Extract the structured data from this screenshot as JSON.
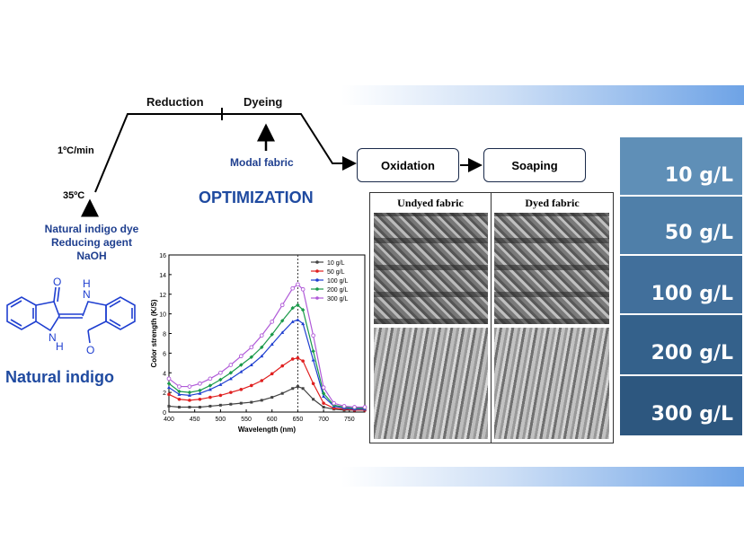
{
  "flow": {
    "reduction": "Reduction",
    "dyeing": "Dyeing",
    "rate": "1ºC/min",
    "start_temp": "35ºC",
    "modal_fabric": "Modal fabric",
    "oxidation": "Oxidation",
    "soaping": "Soaping",
    "optimization": "OPTIMIZATION"
  },
  "inputs": {
    "line1": "Natural indigo dye",
    "line2": "Reducing agent",
    "line3": "NaOH"
  },
  "molecule": {
    "name": "Natural indigo",
    "atom_o": "O",
    "atom_nh": "N",
    "atom_h": "H"
  },
  "sem": {
    "undyed": "Undyed fabric",
    "dyed": "Dyed fabric"
  },
  "swatches": [
    {
      "label": "10 g/L",
      "color": "#5f8fb7"
    },
    {
      "label": "50 g/L",
      "color": "#4f7fa9"
    },
    {
      "label": "100 g/L",
      "color": "#416f9b"
    },
    {
      "label": "200 g/L",
      "color": "#34618b"
    },
    {
      "label": "300 g/L",
      "color": "#2d577f"
    }
  ],
  "chart_data": {
    "type": "line",
    "xlabel": "Wavelength (nm)",
    "ylabel": "Color strength (K/S)",
    "xlim": [
      400,
      780
    ],
    "ylim": [
      0,
      16
    ],
    "xticks": [
      400,
      450,
      500,
      550,
      600,
      650,
      700,
      750
    ],
    "yticks": [
      0,
      2,
      4,
      6,
      8,
      10,
      12,
      14,
      16
    ],
    "peak_line_x": 650,
    "legend_position": "top-right",
    "x": [
      400,
      420,
      440,
      460,
      480,
      500,
      520,
      540,
      560,
      580,
      600,
      620,
      640,
      650,
      660,
      680,
      700,
      720,
      740,
      760,
      780
    ],
    "series": [
      {
        "name": "10 g/L",
        "color": "#444444",
        "marker": "square",
        "values": [
          0.6,
          0.5,
          0.5,
          0.5,
          0.6,
          0.7,
          0.8,
          0.9,
          1.0,
          1.2,
          1.5,
          1.9,
          2.4,
          2.6,
          2.4,
          1.3,
          0.5,
          0.3,
          0.2,
          0.2,
          0.2
        ]
      },
      {
        "name": "50 g/L",
        "color": "#e02020",
        "marker": "circle",
        "values": [
          1.8,
          1.3,
          1.2,
          1.3,
          1.5,
          1.7,
          2.0,
          2.3,
          2.7,
          3.2,
          3.9,
          4.7,
          5.4,
          5.5,
          5.2,
          2.9,
          0.9,
          0.4,
          0.3,
          0.2,
          0.2
        ]
      },
      {
        "name": "100 g/L",
        "color": "#1f3fd0",
        "marker": "triangle",
        "values": [
          2.5,
          1.8,
          1.7,
          1.9,
          2.3,
          2.8,
          3.4,
          4.1,
          4.8,
          5.7,
          6.9,
          8.1,
          9.2,
          9.4,
          9.0,
          5.3,
          1.6,
          0.6,
          0.4,
          0.3,
          0.3
        ]
      },
      {
        "name": "200 g/L",
        "color": "#1a9a4a",
        "marker": "diamond",
        "values": [
          2.9,
          2.1,
          2.0,
          2.2,
          2.7,
          3.3,
          4.0,
          4.8,
          5.6,
          6.6,
          7.9,
          9.3,
          10.6,
          10.9,
          10.4,
          6.2,
          1.9,
          0.7,
          0.5,
          0.4,
          0.4
        ]
      },
      {
        "name": "300 g/L",
        "color": "#b05ad8",
        "marker": "open-circle",
        "values": [
          3.4,
          2.6,
          2.6,
          2.9,
          3.4,
          4.0,
          4.8,
          5.7,
          6.6,
          7.8,
          9.2,
          10.9,
          12.6,
          13.0,
          12.5,
          7.8,
          2.5,
          0.9,
          0.6,
          0.5,
          0.5
        ]
      }
    ]
  }
}
